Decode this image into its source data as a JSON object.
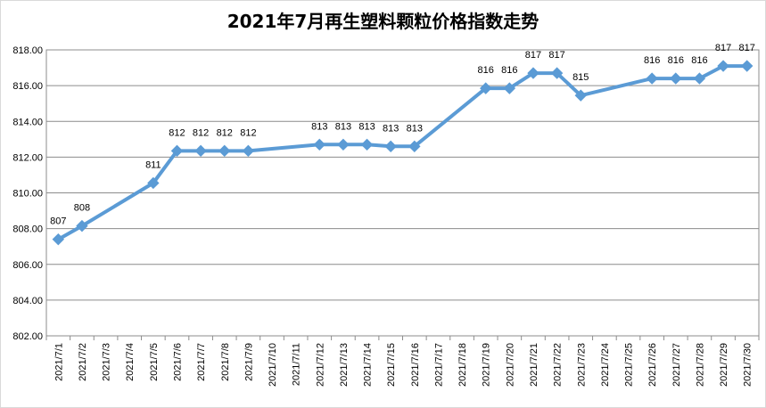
{
  "chart_data": {
    "type": "line",
    "title": "2021年7月再生塑料颗粒价格指数走势",
    "xlabel": "",
    "ylabel": "",
    "ylim": [
      802.0,
      818.0
    ],
    "y_ticks": [
      "802.00",
      "804.00",
      "806.00",
      "808.00",
      "810.00",
      "812.00",
      "814.00",
      "816.00",
      "818.00"
    ],
    "grid": true,
    "legend": "none",
    "line_color": "#5b9bd5",
    "categories": [
      "2021/7/1",
      "2021/7/2",
      "2021/7/3",
      "2021/7/4",
      "2021/7/5",
      "2021/7/6",
      "2021/7/7",
      "2021/7/8",
      "2021/7/9",
      "2021/7/10",
      "2021/7/11",
      "2021/7/12",
      "2021/7/13",
      "2021/7/14",
      "2021/7/15",
      "2021/7/16",
      "2021/7/17",
      "2021/7/18",
      "2021/7/19",
      "2021/7/20",
      "2021/7/21",
      "2021/7/22",
      "2021/7/23",
      "2021/7/24",
      "2021/7/25",
      "2021/7/26",
      "2021/7/27",
      "2021/7/28",
      "2021/7/29",
      "2021/7/30"
    ],
    "points": [
      {
        "x": "2021/7/1",
        "y": 807.4,
        "label": "807"
      },
      {
        "x": "2021/7/2",
        "y": 808.15,
        "label": "808"
      },
      {
        "x": "2021/7/5",
        "y": 810.55,
        "label": "811"
      },
      {
        "x": "2021/7/6",
        "y": 812.35,
        "label": "812"
      },
      {
        "x": "2021/7/7",
        "y": 812.35,
        "label": "812"
      },
      {
        "x": "2021/7/8",
        "y": 812.35,
        "label": "812"
      },
      {
        "x": "2021/7/9",
        "y": 812.35,
        "label": "812"
      },
      {
        "x": "2021/7/12",
        "y": 812.7,
        "label": "813"
      },
      {
        "x": "2021/7/13",
        "y": 812.7,
        "label": "813"
      },
      {
        "x": "2021/7/14",
        "y": 812.7,
        "label": "813"
      },
      {
        "x": "2021/7/15",
        "y": 812.6,
        "label": "813"
      },
      {
        "x": "2021/7/16",
        "y": 812.6,
        "label": "813"
      },
      {
        "x": "2021/7/19",
        "y": 815.85,
        "label": "816"
      },
      {
        "x": "2021/7/20",
        "y": 815.85,
        "label": "816"
      },
      {
        "x": "2021/7/21",
        "y": 816.7,
        "label": "817"
      },
      {
        "x": "2021/7/22",
        "y": 816.7,
        "label": "817"
      },
      {
        "x": "2021/7/23",
        "y": 815.45,
        "label": "815"
      },
      {
        "x": "2021/7/26",
        "y": 816.4,
        "label": "816"
      },
      {
        "x": "2021/7/27",
        "y": 816.4,
        "label": "816"
      },
      {
        "x": "2021/7/28",
        "y": 816.4,
        "label": "816"
      },
      {
        "x": "2021/7/29",
        "y": 817.1,
        "label": "817"
      },
      {
        "x": "2021/7/30",
        "y": 817.1,
        "label": "817"
      }
    ]
  }
}
